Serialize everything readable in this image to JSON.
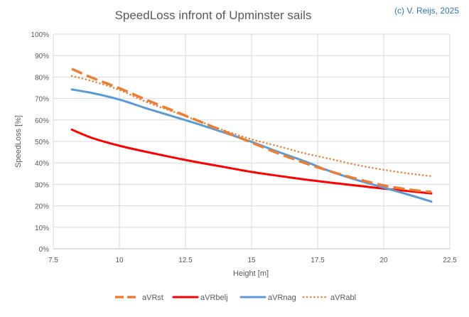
{
  "chart_data": {
    "type": "line",
    "title": "SpeedLoss infront of Upminster sails",
    "copyright": "(c) V. Reijs, 2025",
    "xlabel": "Height [m]",
    "ylabel": "SpeedLoss [%]",
    "xlim": [
      7.5,
      22.5
    ],
    "ylim": [
      0,
      100
    ],
    "x_ticks": [
      7.5,
      10,
      12.5,
      15,
      17.5,
      20,
      22.5
    ],
    "x_tick_labels": [
      "7.5",
      "10",
      "12.5",
      "15",
      "17.5",
      "20",
      "22.5"
    ],
    "y_ticks": [
      0,
      10,
      20,
      30,
      40,
      50,
      60,
      70,
      80,
      90,
      100
    ],
    "y_tick_labels": [
      "0%",
      "10%",
      "20%",
      "30%",
      "40%",
      "50%",
      "60%",
      "70%",
      "80%",
      "90%",
      "100%"
    ],
    "grid": true,
    "legend_position": "bottom",
    "series": [
      {
        "name": "aVRst",
        "color": "#ED7D31",
        "style": "dash",
        "x": [
          8.2,
          9,
          10,
          11,
          12,
          13,
          14,
          15,
          16,
          17,
          18,
          19,
          20,
          21,
          21.8
        ],
        "y": [
          83.8,
          79.5,
          74.8,
          69.5,
          64.5,
          59.5,
          54.5,
          49.5,
          44.5,
          40.0,
          36.0,
          32.5,
          29.5,
          27.5,
          26.5
        ]
      },
      {
        "name": "aVRbelj",
        "color": "#FF0000",
        "style": "solid",
        "x": [
          8.2,
          9,
          10,
          11,
          12,
          13,
          14,
          15,
          16,
          17,
          18,
          19,
          20,
          21,
          21.8
        ],
        "y": [
          55.5,
          51.5,
          48.0,
          45.2,
          42.6,
          40.2,
          38.0,
          35.8,
          34.0,
          32.3,
          30.8,
          29.4,
          28.0,
          26.8,
          25.8
        ]
      },
      {
        "name": "aVRnag",
        "color": "#5B9BD5",
        "style": "solid",
        "x": [
          8.2,
          9,
          10,
          11,
          12,
          13,
          14,
          15,
          16,
          17,
          18,
          19,
          20,
          21,
          21.8
        ],
        "y": [
          74.2,
          72.5,
          69.5,
          65.5,
          61.8,
          58.0,
          54.0,
          49.8,
          45.2,
          40.8,
          36.0,
          32.0,
          28.5,
          25.0,
          22.0
        ]
      },
      {
        "name": "aVRabl",
        "color": "#ED7D31",
        "style": "dot",
        "x": [
          8.2,
          9,
          10,
          11,
          12,
          13,
          14,
          15,
          16,
          17,
          18,
          19,
          20,
          21,
          21.8
        ],
        "y": [
          80.5,
          78.0,
          74.0,
          68.5,
          64.0,
          59.5,
          55.0,
          51.0,
          47.8,
          44.5,
          41.8,
          39.0,
          36.8,
          35.0,
          33.8
        ]
      }
    ]
  }
}
